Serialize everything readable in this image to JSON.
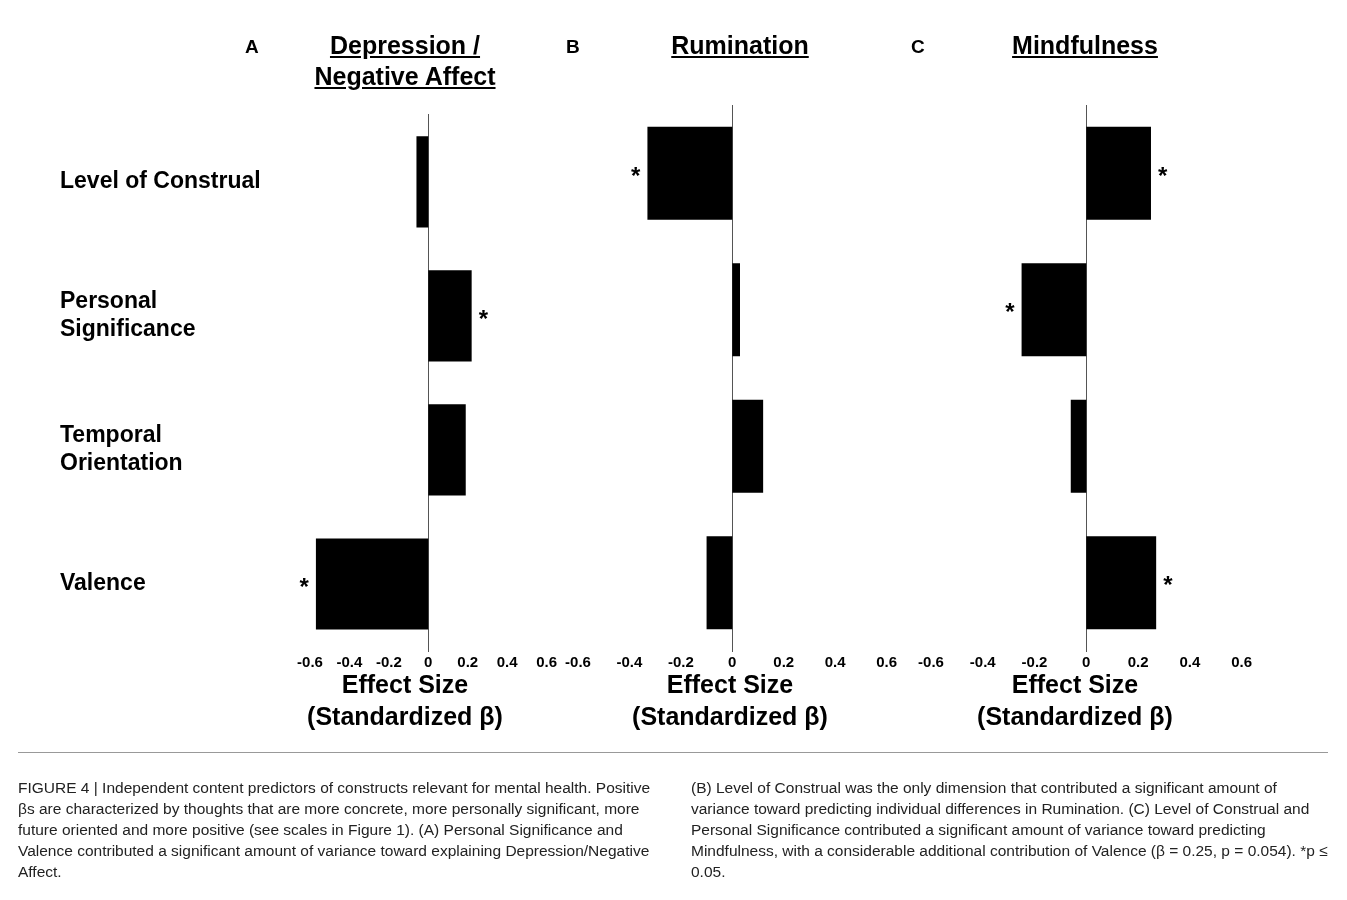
{
  "chart_data": [
    {
      "type": "bar",
      "orientation": "horizontal",
      "title": "Depression / Negative Affect",
      "xlabel": "Effect Size (Standardized β)",
      "categories": [
        "Level of Construal",
        "Personal Significance",
        "Temporal Orientation",
        "Valence"
      ],
      "values": [
        -0.06,
        0.22,
        0.19,
        -0.57
      ],
      "color": "#000000",
      "xlim": [
        -0.6,
        0.6
      ],
      "xticks": [
        -0.6,
        -0.4,
        -0.2,
        0,
        0.2,
        0.4,
        0.6
      ],
      "annotations": [
        "A",
        "FIGURE 4 | Independent content predictors of constructs relevant for mental health. Positive βs are characterized by thoughts that are more concrete, more personally significant, more future oriented and more positive (see scales in Figure 1). (A) Personal Significance and Valence contributed a significant amount of variance toward explaining Depression/Negative Affect.",
        "(B) Level of Construal was the only dimension that contributed a significant amount of variance toward predicting individual differences in Rumination. (C) Level of Construal and Personal Significance contributed a significant amount of variance toward predicting Mindfulness, with a considerable additional contribution of Valence (β = 0.25, p = 0.054). *p ≤ 0.05.",
        {
          "text": "*",
          "x": 0.22,
          "y": "Personal Significance"
        },
        {
          "text": "*",
          "x": -0.57,
          "y": "Valence"
        }
      ]
    },
    {
      "type": "bar",
      "orientation": "horizontal",
      "title": "Rumination",
      "xlabel": "Effect Size (Standardized β)",
      "categories": [
        "Level of Construal",
        "Personal Significance",
        "Temporal Orientation",
        "Valence"
      ],
      "tick_labels": "x",
      "values": [
        -0.33,
        0.03,
        0.12,
        -0.1
      ],
      "color": "#000000",
      "xlim": [
        -0.6,
        0.6
      ],
      "xticks": [
        -0.6,
        -0.4,
        -0.2,
        0,
        0.2,
        0.4,
        0.6
      ],
      "annotations": [
        "B",
        {
          "text": "*",
          "x": -0.33,
          "y": "Level of Construal"
        }
      ]
    },
    {
      "type": "bar",
      "orientation": "horizontal",
      "title": "Mindfulness",
      "xlabel": "Effect Size (Standardized β)",
      "categories": [
        "Level of Construal",
        "Personal Significance",
        "Temporal Orientation",
        "Valence"
      ],
      "tick_labels": "x",
      "values": [
        0.25,
        -0.25,
        -0.06,
        0.27
      ],
      "color": "#000000",
      "xlim": [
        -0.6,
        0.6
      ],
      "xticks": [
        -0.6,
        -0.4,
        -0.2,
        0,
        0.2,
        0.4,
        0.6
      ],
      "annotations": [
        "C",
        {
          "text": "*",
          "x": 0.25,
          "y": "Level of Construal"
        },
        {
          "text": "*",
          "x": -0.25,
          "y": "Personal Significance"
        },
        {
          "text": "*",
          "x": 0.27,
          "y": "Valence"
        }
      ]
    }
  ]
}
